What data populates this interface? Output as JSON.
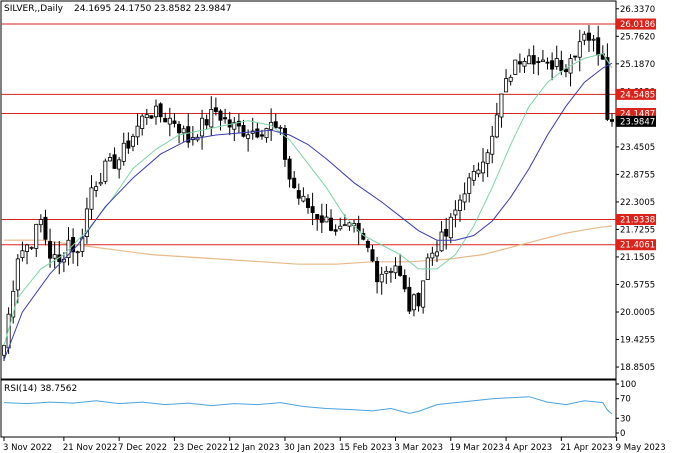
{
  "header": {
    "symbol_label": "SILVER,,Daily",
    "ohlc_label": "24.1695 24.1750 23.8582 23.9847"
  },
  "rsi_label": "RSI(14) 38.7562",
  "colors": {
    "bull": "#ffffff",
    "bear": "#000000",
    "wick": "#000000",
    "ma20": "#7fd4a8",
    "ma50": "#3b3bb8",
    "ma200": "#e8b98a",
    "rsi": "#4aa3df",
    "hline": "#d9241c",
    "current_price_bg": "#000000",
    "level_bg": "#d9241c",
    "grid_frame": "#000000"
  },
  "chart_data": [
    {
      "type": "candlestick",
      "name": "SILVER,,Daily",
      "price_range": [
        18.6,
        26.5
      ],
      "y_ticks": [
        "26.3370",
        "25.7620",
        "25.1870",
        "24.6120",
        "24.0370",
        "23.4505",
        "22.8755",
        "22.3005",
        "21.7255",
        "21.1505",
        "20.5755",
        "20.0005",
        "19.4255",
        "18.8505"
      ],
      "x_ticks": [
        {
          "label": "3 Nov 2022",
          "index": 0
        },
        {
          "label": "21 Nov 2022",
          "index": 13
        },
        {
          "label": "7 Dec 2022",
          "index": 25
        },
        {
          "label": "23 Dec 2022",
          "index": 37
        },
        {
          "label": "12 Jan 2023",
          "index": 49
        },
        {
          "label": "30 Jan 2023",
          "index": 61
        },
        {
          "label": "15 Feb 2023",
          "index": 73
        },
        {
          "label": "3 Mar 2023",
          "index": 85
        },
        {
          "label": "19 Mar 2023",
          "index": 97
        },
        {
          "label": "4 Apr 2023",
          "index": 109
        },
        {
          "label": "21 Apr 2023",
          "index": 121
        },
        {
          "label": "9 May 2023",
          "index": 133
        }
      ],
      "levels": [
        {
          "value": 26.0186,
          "label": "26.0186"
        },
        {
          "value": 24.5485,
          "label": "24.5485"
        },
        {
          "value": 24.1487,
          "label": "24.1487"
        },
        {
          "value": 21.9338,
          "label": "21.9338"
        },
        {
          "value": 21.4061,
          "label": "21.4061"
        }
      ],
      "current_price": {
        "value": 23.9847,
        "label": "23.9847"
      },
      "close_waypoints": [
        [
          0,
          19.3
        ],
        [
          3,
          21.2
        ],
        [
          6,
          21.5
        ],
        [
          8,
          21.9
        ],
        [
          10,
          21.2
        ],
        [
          12,
          21.0
        ],
        [
          14,
          21.5
        ],
        [
          16,
          21.2
        ],
        [
          19,
          22.6
        ],
        [
          22,
          23.0
        ],
        [
          25,
          23.2
        ],
        [
          28,
          23.7
        ],
        [
          31,
          24.2
        ],
        [
          34,
          24.1
        ],
        [
          37,
          24.0
        ],
        [
          40,
          23.6
        ],
        [
          43,
          23.9
        ],
        [
          46,
          24.2
        ],
        [
          49,
          23.9
        ],
        [
          52,
          23.8
        ],
        [
          55,
          23.8
        ],
        [
          58,
          23.9
        ],
        [
          60,
          23.7
        ],
        [
          62,
          22.8
        ],
        [
          64,
          22.4
        ],
        [
          67,
          22.1
        ],
        [
          70,
          21.9
        ],
        [
          73,
          21.7
        ],
        [
          76,
          21.7
        ],
        [
          79,
          21.3
        ],
        [
          81,
          20.8
        ],
        [
          83,
          20.9
        ],
        [
          85,
          21.0
        ],
        [
          87,
          20.4
        ],
        [
          88,
          20.1
        ],
        [
          90,
          20.3
        ],
        [
          92,
          21.1
        ],
        [
          94,
          21.4
        ],
        [
          96,
          21.6
        ],
        [
          98,
          22.1
        ],
        [
          100,
          22.6
        ],
        [
          102,
          22.8
        ],
        [
          104,
          23.3
        ],
        [
          106,
          23.6
        ],
        [
          108,
          24.5
        ],
        [
          110,
          25.0
        ],
        [
          112,
          25.3
        ],
        [
          114,
          25.5
        ],
        [
          116,
          25.2
        ],
        [
          118,
          25.1
        ],
        [
          120,
          25.3
        ],
        [
          122,
          25.1
        ],
        [
          124,
          25.5
        ],
        [
          126,
          25.9
        ],
        [
          128,
          25.6
        ],
        [
          130,
          25.4
        ],
        [
          131,
          24.2
        ],
        [
          132,
          23.98
        ]
      ],
      "ma20_waypoints": [
        [
          0,
          19.3
        ],
        [
          3,
          20.3
        ],
        [
          8,
          20.9
        ],
        [
          13,
          21.2
        ],
        [
          18,
          21.7
        ],
        [
          23,
          22.3
        ],
        [
          28,
          23.0
        ],
        [
          33,
          23.4
        ],
        [
          38,
          23.7
        ],
        [
          43,
          23.8
        ],
        [
          48,
          23.9
        ],
        [
          53,
          24.0
        ],
        [
          58,
          23.9
        ],
        [
          62,
          23.6
        ],
        [
          66,
          23.1
        ],
        [
          70,
          22.6
        ],
        [
          74,
          22.0
        ],
        [
          78,
          21.6
        ],
        [
          82,
          21.4
        ],
        [
          86,
          21.2
        ],
        [
          90,
          20.9
        ],
        [
          94,
          20.9
        ],
        [
          98,
          21.2
        ],
        [
          102,
          21.8
        ],
        [
          106,
          22.6
        ],
        [
          110,
          23.5
        ],
        [
          114,
          24.3
        ],
        [
          118,
          24.8
        ],
        [
          122,
          25.1
        ],
        [
          126,
          25.3
        ],
        [
          130,
          25.4
        ],
        [
          132,
          25.1
        ]
      ],
      "ma50_waypoints": [
        [
          0,
          19.0
        ],
        [
          4,
          20.0
        ],
        [
          10,
          20.8
        ],
        [
          16,
          21.4
        ],
        [
          22,
          22.2
        ],
        [
          28,
          22.8
        ],
        [
          34,
          23.3
        ],
        [
          40,
          23.6
        ],
        [
          46,
          23.7
        ],
        [
          52,
          23.75
        ],
        [
          58,
          23.8
        ],
        [
          62,
          23.7
        ],
        [
          66,
          23.5
        ],
        [
          70,
          23.2
        ],
        [
          76,
          22.7
        ],
        [
          82,
          22.3
        ],
        [
          86,
          22.0
        ],
        [
          90,
          21.7
        ],
        [
          94,
          21.5
        ],
        [
          98,
          21.5
        ],
        [
          102,
          21.6
        ],
        [
          106,
          21.9
        ],
        [
          110,
          22.4
        ],
        [
          114,
          23.0
        ],
        [
          118,
          23.7
        ],
        [
          122,
          24.3
        ],
        [
          126,
          24.8
        ],
        [
          130,
          25.1
        ],
        [
          132,
          25.2
        ]
      ],
      "ma200_waypoints": [
        [
          0,
          21.5
        ],
        [
          8,
          21.5
        ],
        [
          16,
          21.4
        ],
        [
          24,
          21.3
        ],
        [
          32,
          21.2
        ],
        [
          40,
          21.15
        ],
        [
          48,
          21.1
        ],
        [
          56,
          21.05
        ],
        [
          64,
          21.0
        ],
        [
          72,
          21.0
        ],
        [
          80,
          21.05
        ],
        [
          88,
          21.05
        ],
        [
          96,
          21.1
        ],
        [
          104,
          21.2
        ],
        [
          110,
          21.35
        ],
        [
          116,
          21.5
        ],
        [
          122,
          21.65
        ],
        [
          128,
          21.75
        ],
        [
          132,
          21.8
        ]
      ]
    },
    {
      "type": "line",
      "name": "RSI(14) 38.7562",
      "ylim": [
        0,
        100
      ],
      "y_ticks": [
        {
          "value": 100,
          "label": "100"
        },
        {
          "value": 70,
          "label": "70"
        },
        {
          "value": 30,
          "label": "30"
        },
        {
          "value": 0,
          "label": "0"
        }
      ],
      "last_value": 38.7562,
      "waypoints": [
        [
          0,
          62
        ],
        [
          5,
          60
        ],
        [
          10,
          63
        ],
        [
          15,
          61
        ],
        [
          20,
          66
        ],
        [
          25,
          60
        ],
        [
          30,
          63
        ],
        [
          35,
          58
        ],
        [
          40,
          61
        ],
        [
          45,
          56
        ],
        [
          50,
          60
        ],
        [
          55,
          58
        ],
        [
          60,
          62
        ],
        [
          65,
          54
        ],
        [
          70,
          50
        ],
        [
          75,
          48
        ],
        [
          80,
          45
        ],
        [
          84,
          50
        ],
        [
          88,
          40
        ],
        [
          90,
          44
        ],
        [
          94,
          58
        ],
        [
          98,
          62
        ],
        [
          102,
          66
        ],
        [
          106,
          70
        ],
        [
          110,
          72
        ],
        [
          114,
          74
        ],
        [
          118,
          63
        ],
        [
          122,
          58
        ],
        [
          126,
          66
        ],
        [
          130,
          62
        ],
        [
          131,
          47
        ],
        [
          132,
          38.8
        ]
      ]
    }
  ]
}
